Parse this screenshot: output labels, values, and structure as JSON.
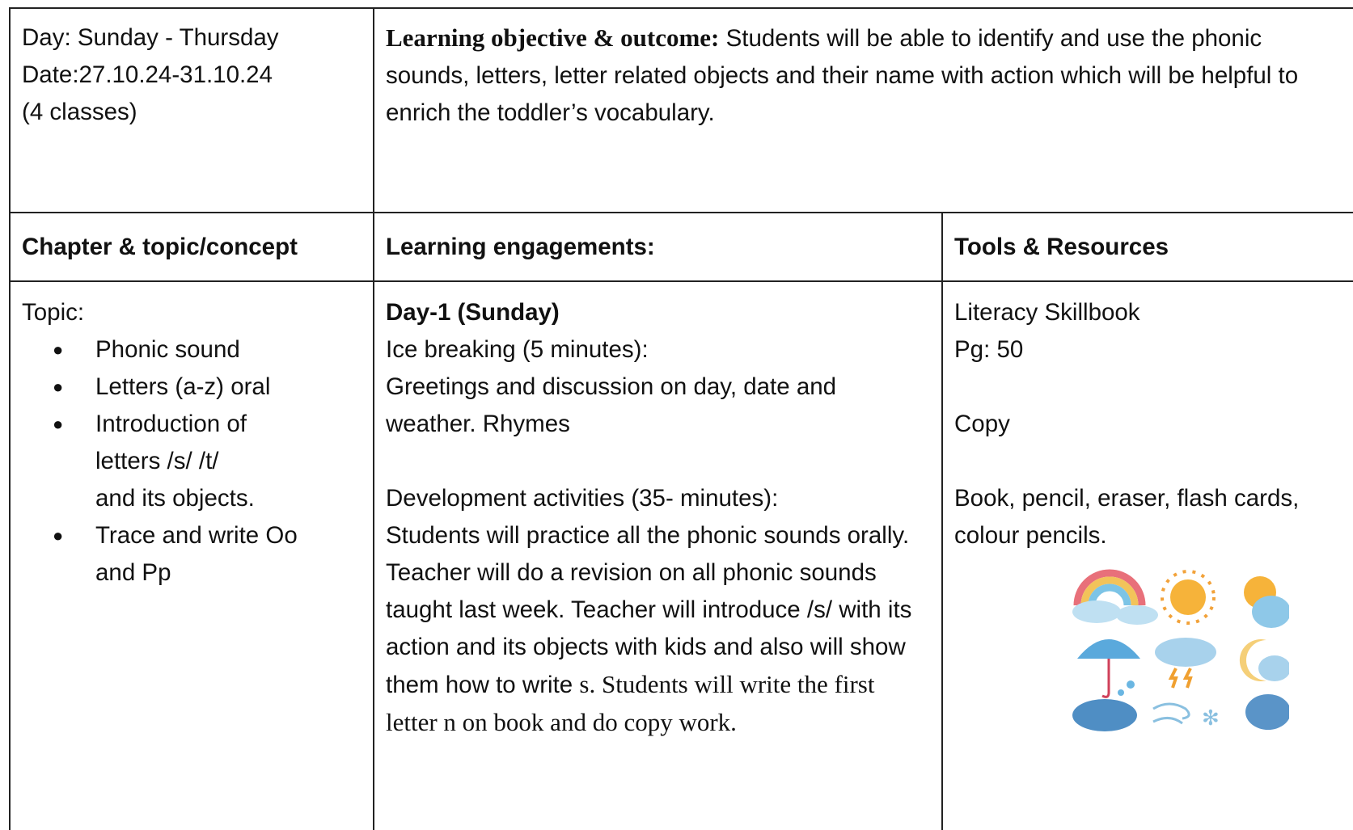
{
  "header": {
    "day": "Day: Sunday - Thursday",
    "date": "Date:27.10.24-31.10.24",
    "classes": "(4 classes)",
    "objective_label": "Learning objective & outcome:",
    "objective_text": "Students will be able to identify and use the phonic sounds, letters, letter related objects and their name with action which will be helpful to enrich the toddler’s vocabulary."
  },
  "table": {
    "columns": [
      "Chapter & topic/concept",
      "Learning engagements:",
      "Tools & Resources"
    ],
    "topic": {
      "label": "Topic:",
      "items": [
        [
          "Phonic sound"
        ],
        [
          "Letters  (a-z) oral"
        ],
        [
          "Introduction of",
          "letters /s/ /t/",
          "and its objects."
        ],
        [
          "Trace and write Oo",
          "and Pp"
        ]
      ]
    },
    "engagements": {
      "day": "Day-1 (Sunday)",
      "ice_breaking": "Ice breaking (5 minutes):",
      "ice_breaking_text": "Greetings and discussion on day, date and weather. Rhymes",
      "development": "Development activities (35- minutes):",
      "development_text": "Students will practice all the phonic sounds orally. Teacher will do a revision on all phonic sounds taught last week. Teacher will introduce /s/ with its action and its objects with kids and also will show them how to write",
      "development_text_end": "s. Students will write the first letter n on book and do copy work."
    },
    "resources": [
      "Literacy Skillbook",
      "Pg: 50",
      "Copy",
      "Book, pencil, eraser, flash cards, colour pencils."
    ]
  }
}
